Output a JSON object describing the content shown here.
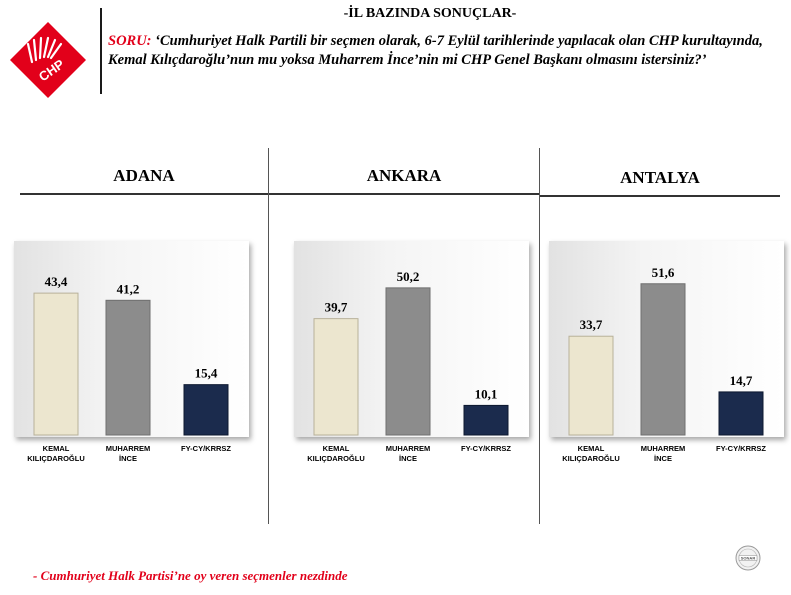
{
  "header": {
    "title": "-İL BAZINDA SONUÇLAR-",
    "question_label": "SORU:",
    "question_text": "‘Cumhuriyet Halk Partili bir seçmen olarak, 6-7 Eylül tarihlerinde yapılacak olan CHP kurultayında, Kemal Kılıçdaroğlu’nun mu yoksa Muharrem İnce’nin mi CHP Genel Başkanı olmasını istersiniz?’",
    "logo_text": "CHP",
    "logo_icon": "chp-six-arrows-logo"
  },
  "colors": {
    "kilicdaroglu": "#ece6cf",
    "ince": "#8c8c8c",
    "other": "#1b2b4d",
    "accent": "#e2001a"
  },
  "chart_data": [
    {
      "type": "bar",
      "title": "ADANA",
      "categories": [
        "KEMAL KILIÇDAROĞLU",
        "MUHARREM İNCE",
        "FY-CY/KRRSZ"
      ],
      "category_lines": [
        [
          "KEMAL",
          "KILIÇDAROĞLU"
        ],
        [
          "MUHARREM",
          "İNCE"
        ],
        [
          "FY-CY/KRRSZ"
        ]
      ],
      "values": [
        43.4,
        41.2,
        15.4
      ],
      "value_labels": [
        "43,4",
        "41,2",
        "15,4"
      ],
      "ylim": [
        0,
        52
      ]
    },
    {
      "type": "bar",
      "title": "ANKARA",
      "categories": [
        "KEMAL KILIÇDAROĞLU",
        "MUHARREM İNCE",
        "FY-CY/KRRSZ"
      ],
      "category_lines": [
        [
          "KEMAL",
          "KILIÇDAROĞLU"
        ],
        [
          "MUHARREM",
          "İNCE"
        ],
        [
          "FY-CY/KRRSZ"
        ]
      ],
      "values": [
        39.7,
        50.2,
        10.1
      ],
      "value_labels": [
        "39,7",
        "50,2",
        "10,1"
      ],
      "ylim": [
        0,
        58
      ]
    },
    {
      "type": "bar",
      "title": "ANTALYA",
      "categories": [
        "KEMAL KILIÇDAROĞLU",
        "MUHARREM İNCE",
        "FY-CY/KRRSZ"
      ],
      "category_lines": [
        [
          "KEMAL",
          "KILIÇDAROĞLU"
        ],
        [
          "MUHARREM",
          "İNCE"
        ],
        [
          "FY-CY/KRRSZ"
        ]
      ],
      "values": [
        33.7,
        51.6,
        14.7
      ],
      "value_labels": [
        "33,7",
        "51,6",
        "14,7"
      ],
      "ylim": [
        0,
        58
      ]
    }
  ],
  "footer": {
    "note": "- Cumhuriyet Halk Partisi’ne oy veren seçmenler nezdinde",
    "stamp_text": "SONAR",
    "stamp_icon": "sonar-seal-logo"
  }
}
